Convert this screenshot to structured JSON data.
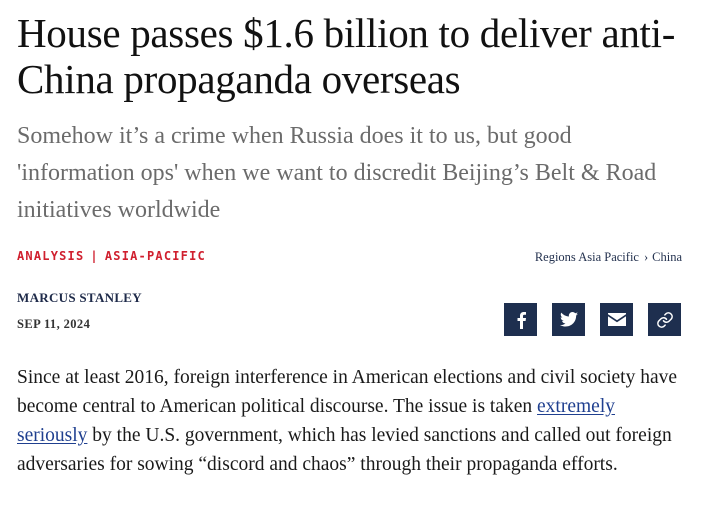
{
  "article": {
    "headline": "House passes $1.6 billion to deliver anti-China propaganda overseas",
    "dek": "Somehow it’s a crime when Russia does it to us, but good 'information ops' when we want to discredit Beijing’s Belt & Road initiatives worldwide",
    "kicker": {
      "type": "ANALYSIS",
      "separator": "|",
      "section": "ASIA-PACIFIC"
    },
    "breadcrumb": {
      "region": "Regions Asia Pacific",
      "chevron": "›",
      "country": "China"
    },
    "author": "MARCUS STANLEY",
    "date": "SEP 11, 2024",
    "share_icons": [
      "facebook-icon",
      "twitter-icon",
      "email-icon",
      "link-icon"
    ],
    "body": {
      "before_link": "Since at least 2016, foreign interference in American elections and civil society have become central to American political discourse. The issue is taken ",
      "link_text": "extremely seriously",
      "after_link": " by the U.S. government, which has levied sanctions and called out foreign adversaries for sowing “discord and chaos” through their propaganda efforts."
    }
  },
  "colors": {
    "kicker_red": "#d0202f",
    "navy": "#1e2f4f",
    "dek_gray": "#6b6b6b",
    "link_blue": "#1f3f8f"
  }
}
